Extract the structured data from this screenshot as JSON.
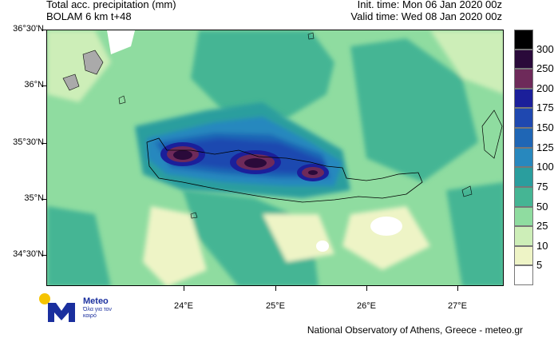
{
  "header": {
    "title_line1": "Total acc. precipitation (mm)",
    "title_line2": "BOLAM 6 km t+48",
    "init_time": "Init. time: Mon 06 Jan 2020 00z",
    "valid_time": "Valid time: Wed 08 Jan 2020 00z"
  },
  "axes": {
    "lat_labels": [
      "36°30'N",
      "36°N",
      "35°30'N",
      "35°N",
      "34°30'N"
    ],
    "lon_labels": [
      "24°E",
      "25°E",
      "26°E",
      "27°E"
    ]
  },
  "legend": {
    "levels": [
      "300",
      "250",
      "200",
      "175",
      "150",
      "125",
      "100",
      "75",
      "50",
      "25",
      "10",
      "5"
    ],
    "colors": [
      "#000000",
      "#2a0a3a",
      "#6e2a5a",
      "#1b1f9a",
      "#1f48b0",
      "#1f66b5",
      "#2888be",
      "#2a9e9e",
      "#45b594",
      "#8fdca0",
      "#cdeeb8",
      "#eef4c6",
      "#ffffff"
    ]
  },
  "logo": {
    "word": "Meteo",
    "subtitle": "Όλα για τον καιρό"
  },
  "footer": {
    "credit": "National Observatory of Athens, Greece - meteo.gr"
  },
  "palette": {
    "base_green": "#8fdca0",
    "light_yellow": "#eef4c6",
    "teal": "#45b594",
    "dark_teal": "#2a9e9e"
  }
}
